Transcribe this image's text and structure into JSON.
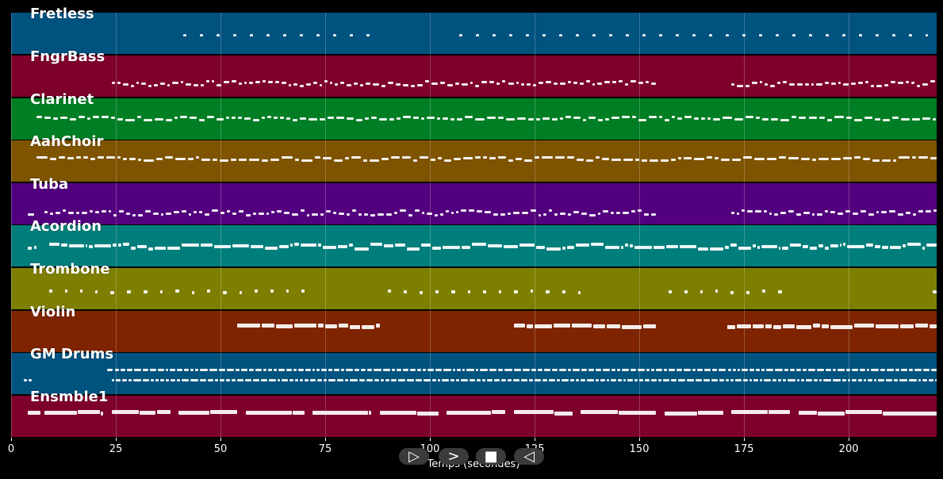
{
  "controls": {
    "play_label": "▷",
    "forward_label": ">",
    "stop_label": "■",
    "back_label": "◁"
  },
  "xaxis": {
    "label": "Temps (secondes)",
    "ticks": [
      "0",
      "25",
      "50",
      "75",
      "100",
      "125",
      "150",
      "175",
      "200"
    ],
    "range": [
      0,
      221
    ]
  },
  "tracks": [
    {
      "name": "Fretless",
      "color": "#00527f"
    },
    {
      "name": "FngrBass",
      "color": "#7e002c"
    },
    {
      "name": "Clarinet",
      "color": "#007e24"
    },
    {
      "name": "AahChoir",
      "color": "#7e5400"
    },
    {
      "name": "Tuba",
      "color": "#53007e"
    },
    {
      "name": "Acordion",
      "color": "#007e7b"
    },
    {
      "name": "Trombone",
      "color": "#7e7e00"
    },
    {
      "name": "Violin",
      "color": "#7e2400"
    },
    {
      "name": "GM Drums",
      "color": "#00527f"
    },
    {
      "name": "Ensmble1",
      "color": "#7e002c"
    }
  ]
}
